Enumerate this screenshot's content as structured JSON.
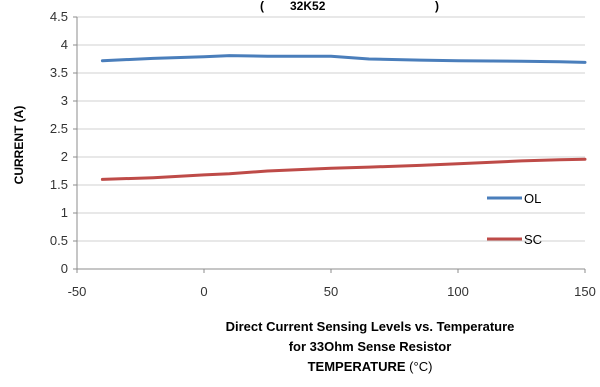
{
  "chart_data": {
    "type": "line",
    "title_fragment": "(",
    "title_fragment_2": "32K52",
    "title_fragment_3": ")",
    "ylabel": "CURRENT (A)",
    "x": [
      -40,
      -20,
      0,
      10,
      25,
      50,
      65,
      85,
      100,
      125,
      140,
      150
    ],
    "xlim": [
      -50,
      150
    ],
    "xticks": [
      -50,
      0,
      50,
      100,
      150
    ],
    "ylim": [
      0,
      4.5
    ],
    "yticks": [
      0,
      0.5,
      1,
      1.5,
      2,
      2.5,
      3,
      3.5,
      4,
      4.5
    ],
    "grid": "horizontal",
    "legend_position": "right",
    "series": [
      {
        "name": "OL",
        "color": "#4a7ebb",
        "values": [
          3.72,
          3.76,
          3.79,
          3.81,
          3.8,
          3.8,
          3.75,
          3.73,
          3.72,
          3.71,
          3.7,
          3.69
        ]
      },
      {
        "name": "SC",
        "color": "#be4b48",
        "values": [
          1.6,
          1.63,
          1.68,
          1.7,
          1.75,
          1.8,
          1.82,
          1.85,
          1.88,
          1.93,
          1.95,
          1.96
        ]
      }
    ],
    "caption_lines": [
      "Direct Current Sensing Levels vs. Temperature",
      "for 33Ohm Sense Resistor"
    ],
    "xlabel_main": "TEMPERATURE",
    "xlabel_unit": " (°C)"
  }
}
